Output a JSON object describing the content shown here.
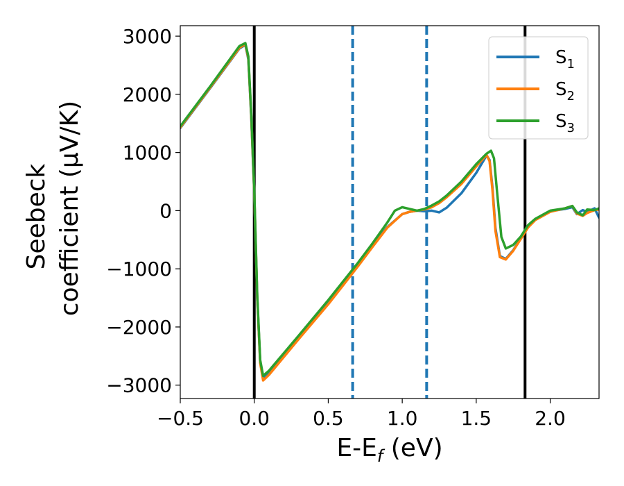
{
  "chart_data": {
    "type": "line",
    "xlabel": "E-E$_f$ (eV)",
    "xlabel_main": "E-E",
    "xlabel_sub": "f",
    "xlabel_unit": " (eV)",
    "ylabel_line1": "Seebeck",
    "ylabel_line2": "coefficient  (μV/K)",
    "xlim": [
      -0.5,
      2.33
    ],
    "ylim": [
      -3230,
      3180
    ],
    "x_ticks": [
      -0.5,
      0.0,
      0.5,
      1.0,
      1.5,
      2.0
    ],
    "x_tick_labels": [
      "−0.5",
      "0.0",
      "0.5",
      "1.0",
      "1.5",
      "2.0"
    ],
    "y_ticks": [
      -3000,
      -2000,
      -1000,
      0,
      1000,
      2000,
      3000
    ],
    "y_tick_labels": [
      "−3000",
      "−2000",
      "−1000",
      "0",
      "1000",
      "2000",
      "3000"
    ],
    "grid": false,
    "legend_position": "top-right",
    "vlines": [
      {
        "x": 0.0,
        "style": "solid",
        "color": "#000000"
      },
      {
        "x": 0.665,
        "style": "dashed",
        "color": "#1f77b4"
      },
      {
        "x": 1.165,
        "style": "dashed",
        "color": "#1f77b4"
      },
      {
        "x": 1.83,
        "style": "solid",
        "color": "#000000"
      }
    ],
    "series": [
      {
        "name": "S1",
        "label_main": "S",
        "label_sub": "1",
        "color": "#1f77b4",
        "x": [
          -0.5,
          -0.3,
          -0.1,
          -0.06,
          -0.04,
          -0.02,
          0.0,
          0.02,
          0.04,
          0.06,
          0.1,
          0.3,
          0.5,
          0.7,
          0.8,
          0.9,
          1.0,
          1.05,
          1.1,
          1.15,
          1.2,
          1.25,
          1.3,
          1.4,
          1.5,
          1.57,
          1.59,
          1.61,
          1.63,
          1.66,
          1.7,
          1.75,
          1.8,
          1.85,
          1.9,
          2.0,
          2.1,
          2.15,
          2.18,
          2.22,
          2.25,
          2.3,
          2.33
        ],
        "y": [
          1420,
          2100,
          2790,
          2850,
          2600,
          1600,
          300,
          -1500,
          -2600,
          -2880,
          -2780,
          -2180,
          -1580,
          -940,
          -600,
          -280,
          -60,
          -20,
          0,
          -10,
          0,
          -30,
          50,
          300,
          650,
          950,
          870,
          400,
          -300,
          -780,
          -830,
          -680,
          -480,
          -280,
          -150,
          -10,
          30,
          60,
          -60,
          10,
          -20,
          40,
          -120
        ]
      },
      {
        "name": "S2",
        "label_main": "S",
        "label_sub": "2",
        "color": "#ff7f0e",
        "x": [
          -0.5,
          -0.3,
          -0.1,
          -0.06,
          -0.04,
          -0.02,
          0.0,
          0.02,
          0.04,
          0.06,
          0.1,
          0.3,
          0.5,
          0.7,
          0.8,
          0.9,
          1.0,
          1.05,
          1.1,
          1.15,
          1.2,
          1.25,
          1.3,
          1.4,
          1.5,
          1.57,
          1.59,
          1.61,
          1.63,
          1.66,
          1.7,
          1.75,
          1.8,
          1.85,
          1.9,
          2.0,
          2.1,
          2.15,
          2.18,
          2.22,
          2.25,
          2.3,
          2.33
        ],
        "y": [
          1430,
          2110,
          2800,
          2860,
          2620,
          1620,
          320,
          -1500,
          -2620,
          -2920,
          -2820,
          -2210,
          -1610,
          -960,
          -620,
          -290,
          -60,
          -20,
          0,
          20,
          60,
          130,
          230,
          460,
          760,
          960,
          850,
          350,
          -350,
          -800,
          -840,
          -690,
          -490,
          -290,
          -160,
          -20,
          40,
          80,
          -50,
          -90,
          -40,
          10,
          20
        ]
      },
      {
        "name": "S3",
        "label_main": "S",
        "label_sub": "3",
        "color": "#2ca02c",
        "x": [
          -0.5,
          -0.3,
          -0.1,
          -0.06,
          -0.04,
          -0.02,
          0.0,
          0.02,
          0.04,
          0.06,
          0.1,
          0.3,
          0.5,
          0.7,
          0.8,
          0.9,
          0.95,
          1.0,
          1.05,
          1.1,
          1.15,
          1.2,
          1.25,
          1.3,
          1.4,
          1.5,
          1.57,
          1.6,
          1.62,
          1.64,
          1.67,
          1.7,
          1.75,
          1.8,
          1.85,
          1.9,
          2.0,
          2.1,
          2.15,
          2.18,
          2.22,
          2.25,
          2.3,
          2.33
        ],
        "y": [
          1450,
          2130,
          2830,
          2880,
          2650,
          1660,
          360,
          -1450,
          -2570,
          -2840,
          -2750,
          -2150,
          -1540,
          -900,
          -560,
          -200,
          0,
          60,
          30,
          0,
          30,
          90,
          160,
          260,
          500,
          800,
          980,
          1030,
          900,
          350,
          -450,
          -650,
          -590,
          -450,
          -250,
          -140,
          0,
          40,
          80,
          -30,
          -80,
          20,
          10,
          40
        ]
      }
    ]
  }
}
